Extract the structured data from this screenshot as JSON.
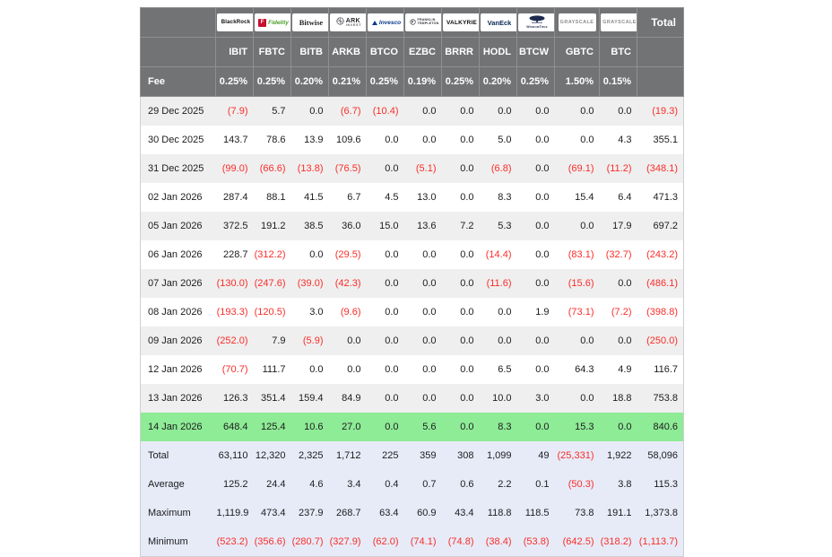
{
  "table": {
    "corner_label": "",
    "total_header": "Total",
    "fee_label": "Fee",
    "funds": [
      {
        "id": "blackrock",
        "issuer": "BlackRock",
        "logo_text": "BlackRock",
        "logo_sub": "",
        "logo_icon": "",
        "ticker": "IBIT",
        "fee": "0.25%"
      },
      {
        "id": "fidelity",
        "issuer": "Fidelity",
        "logo_text": "Fidelity",
        "logo_sub": "",
        "logo_icon": "F",
        "ticker": "FBTC",
        "fee": "0.25%"
      },
      {
        "id": "bitwise",
        "issuer": "Bitwise",
        "logo_text": "Bitwise",
        "logo_sub": "",
        "logo_icon": "",
        "ticker": "BITB",
        "fee": "0.20%"
      },
      {
        "id": "ark",
        "issuer": "ARK Invest",
        "logo_text": "ARK",
        "logo_sub": "INVEST",
        "logo_icon": "globe",
        "ticker": "ARKB",
        "fee": "0.21%"
      },
      {
        "id": "invesco",
        "issuer": "Invesco",
        "logo_text": "Invesco",
        "logo_sub": "",
        "logo_icon": "triangle",
        "ticker": "BTCO",
        "fee": "0.25%"
      },
      {
        "id": "franklin",
        "issuer": "Franklin Templeton",
        "logo_text": "FRANKLIN",
        "logo_sub": "TEMPLETON",
        "logo_icon": "circle",
        "ticker": "EZBC",
        "fee": "0.19%"
      },
      {
        "id": "valkyrie",
        "issuer": "Valkyrie",
        "logo_text": "VALKYRIE",
        "logo_sub": "",
        "logo_icon": "",
        "ticker": "BRRR",
        "fee": "0.25%"
      },
      {
        "id": "vaneck",
        "issuer": "VanEck",
        "logo_text": "VanEck",
        "logo_sub": "",
        "logo_icon": "",
        "ticker": "HODL",
        "fee": "0.20%"
      },
      {
        "id": "wisdomtree",
        "issuer": "WisdomTree",
        "logo_text": "",
        "logo_sub": "WisdomTree",
        "logo_icon": "tree",
        "ticker": "BTCW",
        "fee": "0.25%"
      },
      {
        "id": "grayscale",
        "issuer": "Grayscale",
        "logo_text": "GRAYSCALE",
        "logo_sub": "",
        "logo_icon": "",
        "ticker": "GBTC",
        "fee": "1.50%"
      },
      {
        "id": "grayscale2",
        "issuer": "Grayscale",
        "logo_text": "GRAYSCALE",
        "logo_sub": "",
        "logo_icon": "",
        "ticker": "BTC",
        "fee": "0.15%"
      }
    ],
    "rows": [
      {
        "date": "29 Dec 2025",
        "values": [
          "(7.9)",
          "5.7",
          "0.0",
          "(6.7)",
          "(10.4)",
          "0.0",
          "0.0",
          "0.0",
          "0.0",
          "0.0",
          "0.0"
        ],
        "total": "(19.3)",
        "highlight": false
      },
      {
        "date": "30 Dec 2025",
        "values": [
          "143.7",
          "78.6",
          "13.9",
          "109.6",
          "0.0",
          "0.0",
          "0.0",
          "5.0",
          "0.0",
          "0.0",
          "4.3"
        ],
        "total": "355.1",
        "highlight": false
      },
      {
        "date": "31 Dec 2025",
        "values": [
          "(99.0)",
          "(66.6)",
          "(13.8)",
          "(76.5)",
          "0.0",
          "(5.1)",
          "0.0",
          "(6.8)",
          "0.0",
          "(69.1)",
          "(11.2)"
        ],
        "total": "(348.1)",
        "highlight": false
      },
      {
        "date": "02 Jan 2026",
        "values": [
          "287.4",
          "88.1",
          "41.5",
          "6.7",
          "4.5",
          "13.0",
          "0.0",
          "8.3",
          "0.0",
          "15.4",
          "6.4"
        ],
        "total": "471.3",
        "highlight": false
      },
      {
        "date": "05 Jan 2026",
        "values": [
          "372.5",
          "191.2",
          "38.5",
          "36.0",
          "15.0",
          "13.6",
          "7.2",
          "5.3",
          "0.0",
          "0.0",
          "17.9"
        ],
        "total": "697.2",
        "highlight": false
      },
      {
        "date": "06 Jan 2026",
        "values": [
          "228.7",
          "(312.2)",
          "0.0",
          "(29.5)",
          "0.0",
          "0.0",
          "0.0",
          "(14.4)",
          "0.0",
          "(83.1)",
          "(32.7)"
        ],
        "total": "(243.2)",
        "highlight": false
      },
      {
        "date": "07 Jan 2026",
        "values": [
          "(130.0)",
          "(247.6)",
          "(39.0)",
          "(42.3)",
          "0.0",
          "0.0",
          "0.0",
          "(11.6)",
          "0.0",
          "(15.6)",
          "0.0"
        ],
        "total": "(486.1)",
        "highlight": false
      },
      {
        "date": "08 Jan 2026",
        "values": [
          "(193.3)",
          "(120.5)",
          "3.0",
          "(9.6)",
          "0.0",
          "0.0",
          "0.0",
          "0.0",
          "1.9",
          "(73.1)",
          "(7.2)"
        ],
        "total": "(398.8)",
        "highlight": false
      },
      {
        "date": "09 Jan 2026",
        "values": [
          "(252.0)",
          "7.9",
          "(5.9)",
          "0.0",
          "0.0",
          "0.0",
          "0.0",
          "0.0",
          "0.0",
          "0.0",
          "0.0"
        ],
        "total": "(250.0)",
        "highlight": false
      },
      {
        "date": "12 Jan 2026",
        "values": [
          "(70.7)",
          "111.7",
          "0.0",
          "0.0",
          "0.0",
          "0.0",
          "0.0",
          "6.5",
          "0.0",
          "64.3",
          "4.9"
        ],
        "total": "116.7",
        "highlight": false
      },
      {
        "date": "13 Jan 2026",
        "values": [
          "126.3",
          "351.4",
          "159.4",
          "84.9",
          "0.0",
          "0.0",
          "0.0",
          "10.0",
          "3.0",
          "0.0",
          "18.8"
        ],
        "total": "753.8",
        "highlight": false
      },
      {
        "date": "14 Jan 2026",
        "values": [
          "648.4",
          "125.4",
          "10.6",
          "27.0",
          "0.0",
          "5.6",
          "0.0",
          "8.3",
          "0.0",
          "15.3",
          "0.0"
        ],
        "total": "840.6",
        "highlight": true
      }
    ],
    "summary": [
      {
        "label": "Total",
        "values": [
          "63,110",
          "12,320",
          "2,325",
          "1,712",
          "225",
          "359",
          "308",
          "1,099",
          "49",
          "(25,331)",
          "1,922"
        ],
        "total": "58,096"
      },
      {
        "label": "Average",
        "values": [
          "125.2",
          "24.4",
          "4.6",
          "3.4",
          "0.4",
          "0.7",
          "0.6",
          "2.2",
          "0.1",
          "(50.3)",
          "3.8"
        ],
        "total": "115.3"
      },
      {
        "label": "Maximum",
        "values": [
          "1,119.9",
          "473.4",
          "237.9",
          "268.7",
          "63.4",
          "60.9",
          "43.4",
          "118.8",
          "118.5",
          "73.8",
          "191.1"
        ],
        "total": "1,373.8"
      },
      {
        "label": "Minimum",
        "values": [
          "(523.2)",
          "(356.6)",
          "(280.7)",
          "(327.9)",
          "(62.0)",
          "(74.1)",
          "(74.8)",
          "(38.4)",
          "(53.8)",
          "(642.5)",
          "(318.2)"
        ],
        "total": "(1,113.7)"
      }
    ],
    "colors": {
      "header_bg": "#727375",
      "stripe_bg": "#efefef",
      "highlight_bg": "#8eeb96",
      "summary_bg": "#e7ebf8",
      "negative": "#fa2d28",
      "positive_text": "#1c1c1e",
      "fidelity_red": "#c8102e",
      "fidelity_green": "#4e9d2d",
      "invesco_blue": "#0b3a8c",
      "vaneck_navy": "#0a2756",
      "wisdomtree_navy": "#1d2b4f",
      "grayscale_gray": "#8d8d90"
    }
  }
}
